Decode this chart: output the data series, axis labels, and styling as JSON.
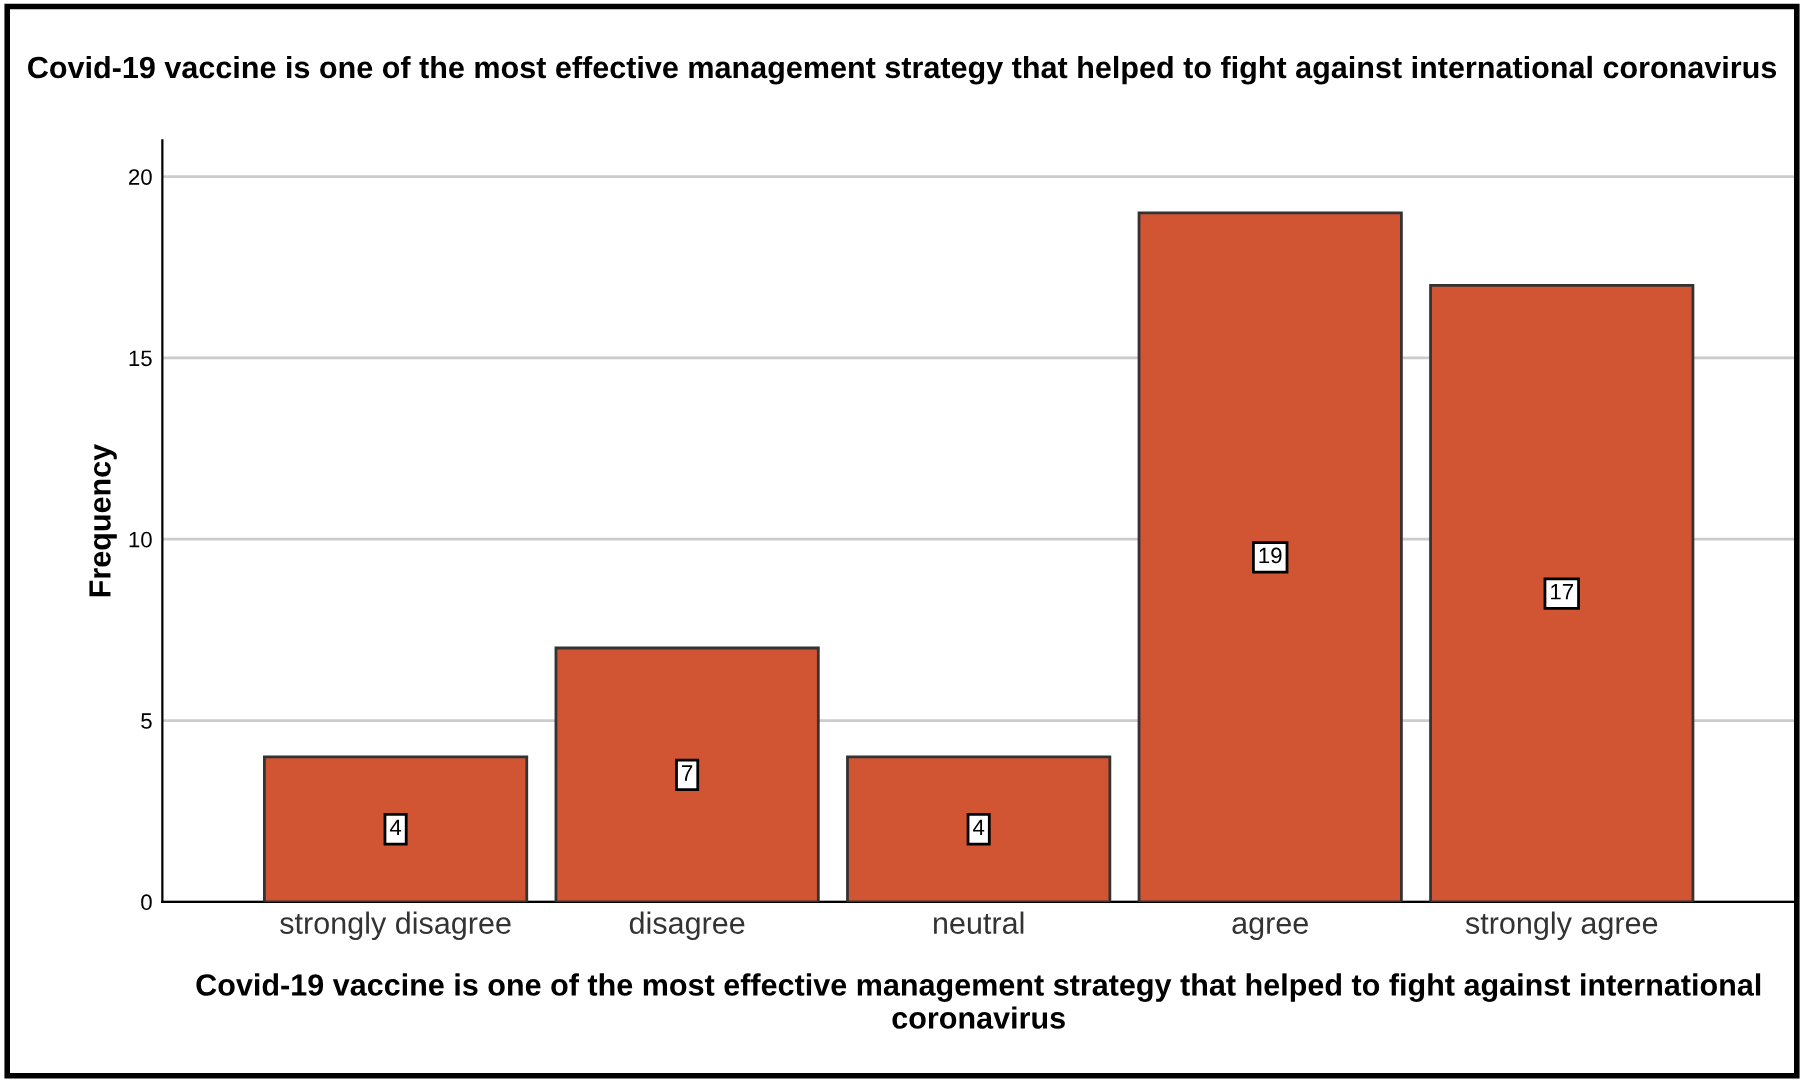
{
  "chart_data": {
    "type": "bar",
    "title": "Covid-19 vaccine is one of the most effective management strategy that helped to fight against international coronavirus",
    "xlabel": "Covid-19 vaccine is one of the most effective management strategy that helped to fight against international coronavirus",
    "ylabel": "Frequency",
    "categories": [
      "strongly disagree",
      "disagree",
      "neutral",
      "agree",
      "strongly agree"
    ],
    "values": [
      4,
      7,
      4,
      19,
      17
    ],
    "color": "#d15433",
    "ylim": [
      0,
      21
    ],
    "yticks": [
      0,
      5,
      10,
      15,
      20
    ],
    "grid": "y",
    "data_labels": true
  }
}
